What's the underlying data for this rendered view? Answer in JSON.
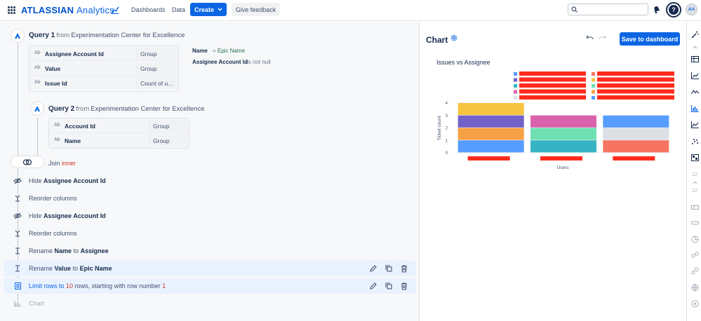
{
  "app": {
    "brand": "ATLASSIAN",
    "product": "Analytics"
  },
  "nav": {
    "dashboards": "Dashboards",
    "data": "Data",
    "create": "Create",
    "feedback": "Give feedback"
  },
  "search": {
    "placeholder": ""
  },
  "user": {
    "initials": "AA"
  },
  "help": {
    "label": "?"
  },
  "query1": {
    "title": "Query 1",
    "from": "from",
    "source": "Experimentation Center for Excellence",
    "columns": [
      {
        "type": "Ab",
        "name": "Assignee Account Id",
        "agg": "Group"
      },
      {
        "type": "Ab",
        "name": "Value",
        "agg": "Group"
      },
      {
        "type": "Ab",
        "name": "Issue Id",
        "agg": "Count of u..."
      }
    ],
    "filters": [
      {
        "label": "Name",
        "op": "=",
        "value": "Epic Name"
      },
      {
        "label": "Assignee Account Id",
        "op": "is not null",
        "value": ""
      }
    ]
  },
  "query2": {
    "title": "Query 2",
    "from": "from",
    "source": "Experimentation Center for Excellence",
    "columns": [
      {
        "type": "Ab",
        "name": "Account Id",
        "agg": "Group"
      },
      {
        "type": "Ab",
        "name": "Name",
        "agg": "Group"
      }
    ]
  },
  "join": {
    "label": "Join",
    "type": "inner"
  },
  "steps": [
    {
      "verb": "Hide",
      "subject": "Assignee Account Id"
    },
    {
      "verb": "Reorder columns"
    },
    {
      "verb": "Hide",
      "subject": "Assignee Account Id"
    },
    {
      "verb": "Reorder columns"
    },
    {
      "verb": "Rename",
      "subject": "Name",
      "to": "to",
      "target": "Assignee"
    },
    {
      "verb": "Rename",
      "subject": "Value",
      "to": "to",
      "target": "Epic Name"
    },
    {
      "verb": "Limit rows to",
      "n": "10",
      "rest": "rows, starting with row number",
      "start": "1"
    },
    {
      "verb": "Chart"
    }
  ],
  "chart_panel": {
    "heading": "Chart",
    "save": "Save to dashboard"
  },
  "chart_data": {
    "type": "bar",
    "title": "Issues vs Assignee",
    "xlabel": "Users",
    "ylabel": "Ticket count",
    "ylim": [
      0,
      4
    ],
    "yticks": [
      "0",
      "1",
      "2",
      "3",
      "4"
    ],
    "grid": true,
    "legend": "top",
    "stacked": true,
    "categories": [
      "",
      "",
      ""
    ],
    "stacks": [
      [
        {
          "value": 1,
          "color": "#579dff"
        },
        {
          "value": 1,
          "color": "#f8a045"
        },
        {
          "value": 1,
          "color": "#7161c9"
        },
        {
          "value": 1,
          "color": "#f5c33f"
        }
      ],
      [
        {
          "value": 1,
          "color": "#37b4c3"
        },
        {
          "value": 1,
          "color": "#6fe0b4"
        },
        {
          "value": 1,
          "color": "#da62ac"
        }
      ],
      [
        {
          "value": 1,
          "color": "#f87462"
        },
        {
          "value": 1,
          "color": "#dcdfe4"
        },
        {
          "value": 1,
          "color": "#579dff"
        }
      ]
    ],
    "legend_swatches": [
      "#579dff",
      "#7161c9",
      "#37b4c3",
      "#da62ac",
      "#dcdfe4",
      "#f87462",
      "#f5c33f",
      "#6fe0b4",
      "#f8a045",
      "#579dff"
    ],
    "redaction_color": "#ff2b1c"
  },
  "toolbar_numbers": {
    "a": "12",
    "b": "12"
  }
}
